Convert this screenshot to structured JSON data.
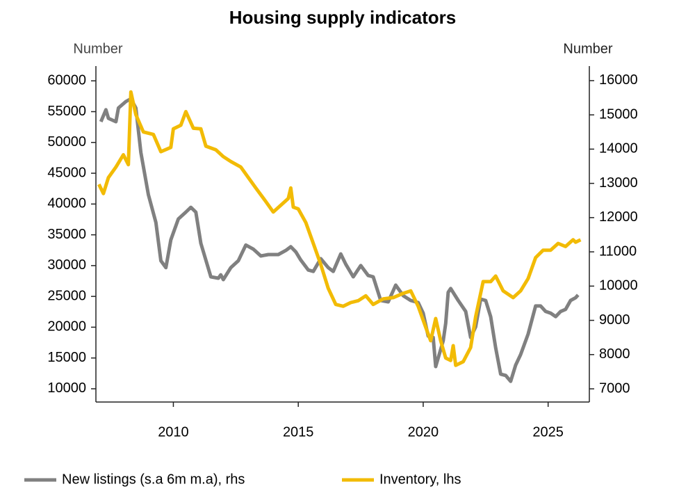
{
  "chart_data": {
    "type": "line",
    "title": "Housing supply indicators",
    "y_label": "Number",
    "y2_label": "Number",
    "xlim": [
      2006.9,
      2026.65
    ],
    "xticks": [
      2010,
      2015,
      2020,
      2025
    ],
    "ylim": [
      7850,
      62400
    ],
    "yticks": [
      10000,
      15000,
      20000,
      25000,
      30000,
      35000,
      40000,
      45000,
      50000,
      55000,
      60000
    ],
    "y2lim": [
      6615,
      16425
    ],
    "y2ticks": [
      7000,
      8000,
      9000,
      10000,
      11000,
      12000,
      13000,
      14000,
      15000,
      16000
    ],
    "legend": "bottom",
    "series": [
      {
        "name": "New listings (s.a 6m m.a), rhs",
        "color": "#808080",
        "axis": "y2",
        "x": [
          2007.1,
          2007.3,
          2007.4,
          2007.7,
          2007.8,
          2008.1,
          2008.3,
          2008.5,
          2008.7,
          2009.0,
          2009.3,
          2009.5,
          2009.7,
          2009.9,
          2010.2,
          2010.5,
          2010.7,
          2010.9,
          2011.1,
          2011.5,
          2011.8,
          2011.9,
          2012.0,
          2012.3,
          2012.6,
          2012.9,
          2013.2,
          2013.5,
          2013.8,
          2014.2,
          2014.5,
          2014.7,
          2014.9,
          2015.1,
          2015.4,
          2015.6,
          2015.9,
          2016.2,
          2016.4,
          2016.7,
          2016.9,
          2017.2,
          2017.5,
          2017.8,
          2018.0,
          2018.3,
          2018.6,
          2018.9,
          2019.2,
          2019.5,
          2019.8,
          2020.0,
          2020.2,
          2020.4,
          2020.5,
          2020.8,
          2020.9,
          2021.0,
          2021.1,
          2021.4,
          2021.7,
          2021.9,
          2022.1,
          2022.3,
          2022.5,
          2022.7,
          2022.9,
          2023.1,
          2023.3,
          2023.5,
          2023.7,
          2023.9,
          2024.2,
          2024.5,
          2024.7,
          2024.9,
          2025.1,
          2025.3,
          2025.5,
          2025.7,
          2025.9,
          2026.1,
          2026.2
        ],
        "values": [
          14800,
          15150,
          14900,
          14800,
          15200,
          15390,
          15470,
          15200,
          13900,
          12670,
          11860,
          10740,
          10540,
          11350,
          11960,
          12160,
          12300,
          12160,
          11250,
          10270,
          10230,
          10330,
          10190,
          10540,
          10740,
          11200,
          11080,
          10880,
          10920,
          10920,
          11040,
          11150,
          11000,
          10760,
          10470,
          10430,
          10800,
          10540,
          10430,
          10940,
          10640,
          10270,
          10600,
          10310,
          10270,
          9580,
          9540,
          10030,
          9720,
          9580,
          9520,
          9210,
          8540,
          8500,
          7650,
          8400,
          8910,
          9820,
          9930,
          9580,
          9260,
          8500,
          8810,
          9620,
          9580,
          9110,
          8200,
          7430,
          7390,
          7220,
          7690,
          8000,
          8600,
          9420,
          9420,
          9260,
          9210,
          9110,
          9260,
          9320,
          9580,
          9660,
          9740
        ]
      },
      {
        "name": "Inventory, lhs",
        "color": "#f2bb05",
        "axis": "y",
        "x": [
          2007.02,
          2007.2,
          2007.4,
          2007.7,
          2008.0,
          2008.2,
          2008.3,
          2008.5,
          2008.8,
          2009.2,
          2009.5,
          2009.9,
          2010.0,
          2010.3,
          2010.5,
          2010.8,
          2011.1,
          2011.3,
          2011.7,
          2012.0,
          2012.3,
          2012.7,
          2013.0,
          2013.3,
          2013.7,
          2014.0,
          2014.3,
          2014.6,
          2014.7,
          2014.8,
          2015.0,
          2015.3,
          2015.6,
          2015.9,
          2016.2,
          2016.5,
          2016.8,
          2017.1,
          2017.4,
          2017.7,
          2018.0,
          2018.4,
          2018.8,
          2019.2,
          2019.5,
          2019.8,
          2020.1,
          2020.3,
          2020.5,
          2020.7,
          2020.9,
          2021.1,
          2021.2,
          2021.3,
          2021.6,
          2021.9,
          2022.1,
          2022.4,
          2022.7,
          2022.9,
          2023.2,
          2023.6,
          2023.9,
          2024.2,
          2024.5,
          2024.8,
          2025.1,
          2025.4,
          2025.7,
          2026.0,
          2026.1,
          2026.3
        ],
        "values": [
          43200,
          41700,
          44300,
          46000,
          48000,
          46400,
          58200,
          54500,
          51700,
          51300,
          48500,
          49200,
          52200,
          52800,
          55000,
          52300,
          52200,
          49400,
          48800,
          47700,
          46900,
          46000,
          44300,
          42600,
          40400,
          38700,
          39800,
          40900,
          42600,
          39500,
          39200,
          37000,
          33600,
          30200,
          26300,
          23700,
          23400,
          24000,
          24300,
          25100,
          23700,
          24600,
          24800,
          25500,
          25900,
          23400,
          20000,
          17800,
          21400,
          17800,
          15000,
          14600,
          17000,
          13800,
          14400,
          16700,
          21700,
          27400,
          27400,
          28300,
          25900,
          24800,
          25900,
          27900,
          31300,
          32500,
          32500,
          33600,
          33100,
          34200,
          33800,
          34200
        ]
      }
    ]
  }
}
